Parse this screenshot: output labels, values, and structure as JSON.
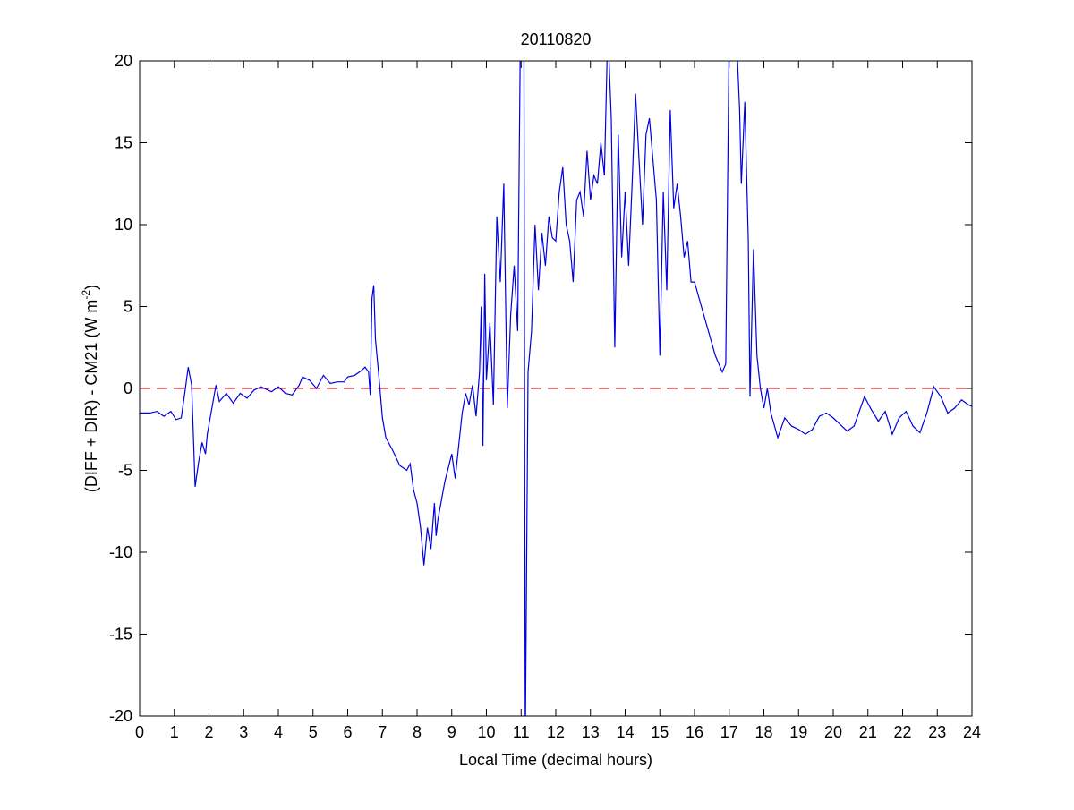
{
  "chart_data": {
    "type": "line",
    "title": "20110820",
    "xlabel": "Local Time (decimal hours)",
    "ylabel_main": "(DIFF + DIR) - CM21 (W m",
    "ylabel_sup": "-2",
    "ylabel_end": ")",
    "xlim": [
      0,
      24
    ],
    "ylim": [
      -20,
      20
    ],
    "xticks": [
      0,
      1,
      2,
      3,
      4,
      5,
      6,
      7,
      8,
      9,
      10,
      11,
      12,
      13,
      14,
      15,
      16,
      17,
      18,
      19,
      20,
      21,
      22,
      23,
      24
    ],
    "yticks": [
      -20,
      -15,
      -10,
      -5,
      0,
      5,
      10,
      15,
      20
    ],
    "grid": false,
    "reference_line": {
      "y": 0,
      "color": "#e02020",
      "style": "dashed"
    },
    "series": [
      {
        "name": "difference",
        "color": "#0000e0",
        "x": [
          0,
          0.3,
          0.5,
          0.7,
          0.9,
          1.05,
          1.2,
          1.3,
          1.4,
          1.5,
          1.6,
          1.7,
          1.8,
          1.9,
          1.95,
          2.1,
          2.2,
          2.3,
          2.5,
          2.7,
          2.9,
          3.1,
          3.3,
          3.5,
          3.8,
          4.0,
          4.2,
          4.4,
          4.6,
          4.7,
          4.9,
          5.1,
          5.3,
          5.5,
          5.7,
          5.9,
          6.0,
          6.2,
          6.4,
          6.5,
          6.6,
          6.65,
          6.7,
          6.75,
          6.8,
          6.9,
          7.0,
          7.1,
          7.3,
          7.5,
          7.7,
          7.8,
          7.9,
          8.0,
          8.1,
          8.2,
          8.3,
          8.4,
          8.5,
          8.55,
          8.6,
          8.8,
          9.0,
          9.1,
          9.2,
          9.3,
          9.4,
          9.5,
          9.6,
          9.7,
          9.8,
          9.85,
          9.9,
          9.95,
          10.0,
          10.1,
          10.2,
          10.3,
          10.4,
          10.5,
          10.6,
          10.7,
          10.8,
          10.9,
          10.98,
          11.08,
          11.12,
          11.2,
          11.3,
          11.4,
          11.5,
          11.6,
          11.7,
          11.8,
          11.9,
          12.0,
          12.1,
          12.2,
          12.3,
          12.4,
          12.5,
          12.6,
          12.7,
          12.8,
          12.9,
          13.0,
          13.1,
          13.2,
          13.3,
          13.4,
          13.5,
          13.6,
          13.7,
          13.8,
          13.9,
          14.0,
          14.1,
          14.2,
          14.3,
          14.4,
          14.5,
          14.6,
          14.7,
          14.8,
          14.9,
          15.0,
          15.1,
          15.2,
          15.3,
          15.4,
          15.5,
          15.6,
          15.7,
          15.8,
          15.9,
          16.0,
          16.2,
          16.4,
          16.6,
          16.8,
          16.9,
          17.0,
          17.1,
          17.2,
          17.3,
          17.35,
          17.45,
          17.55,
          17.6,
          17.7,
          17.8,
          17.9,
          18.0,
          18.1,
          18.2,
          18.4,
          18.6,
          18.8,
          19.0,
          19.2,
          19.4,
          19.6,
          19.8,
          20.0,
          20.2,
          20.4,
          20.6,
          20.9,
          21.1,
          21.3,
          21.5,
          21.7,
          21.9,
          22.1,
          22.3,
          22.5,
          22.7,
          22.9,
          23.1,
          23.3,
          23.5,
          23.7,
          23.9,
          24
        ],
        "y": [
          -1.5,
          -1.5,
          -1.4,
          -1.7,
          -1.4,
          -1.9,
          -1.8,
          -0.3,
          1.3,
          0.2,
          -6.0,
          -4.5,
          -3.3,
          -4.0,
          -2.8,
          -1.0,
          0.2,
          -0.8,
          -0.3,
          -0.9,
          -0.3,
          -0.6,
          -0.1,
          0.1,
          -0.2,
          0.1,
          -0.3,
          -0.4,
          0.2,
          0.7,
          0.5,
          0.0,
          0.8,
          0.3,
          0.4,
          0.4,
          0.7,
          0.8,
          1.1,
          1.3,
          1.0,
          -0.4,
          5.5,
          6.3,
          3.0,
          0.7,
          -1.8,
          -3.0,
          -3.8,
          -4.7,
          -5.0,
          -4.6,
          -6.2,
          -7.0,
          -8.5,
          -10.8,
          -8.5,
          -9.8,
          -7.0,
          -9.0,
          -8.0,
          -5.7,
          -4.0,
          -5.5,
          -3.5,
          -1.5,
          -0.3,
          -1.0,
          0.2,
          -1.7,
          1.0,
          5.0,
          -3.5,
          7.0,
          0.5,
          4.0,
          -1.0,
          10.5,
          6.5,
          12.5,
          -1.2,
          4.5,
          7.5,
          3.5,
          22,
          22,
          -22,
          1.0,
          3.5,
          10.0,
          6.0,
          9.5,
          7.5,
          10.5,
          9.2,
          9.0,
          12.0,
          13.5,
          10.0,
          9.0,
          6.5,
          11.5,
          12.0,
          10.5,
          14.5,
          11.5,
          13.0,
          12.5,
          15.0,
          13.0,
          22,
          16.5,
          2.5,
          15.5,
          8.0,
          12.0,
          7.5,
          12.5,
          18.0,
          14.0,
          10.0,
          15.5,
          16.5,
          14.0,
          11.5,
          2.0,
          12.0,
          6.0,
          17.0,
          11.0,
          12.5,
          10.5,
          8.0,
          9.0,
          6.5,
          6.5,
          5.0,
          3.5,
          2.0,
          1.0,
          1.5,
          22,
          22,
          22,
          17.0,
          12.5,
          17.5,
          9.0,
          -0.5,
          8.5,
          2.0,
          0.0,
          -1.2,
          0.0,
          -1.5,
          -3.0,
          -1.8,
          -2.3,
          -2.5,
          -2.8,
          -2.5,
          -1.7,
          -1.5,
          -1.8,
          -2.2,
          -2.6,
          -2.3,
          -0.5,
          -1.3,
          -2.0,
          -1.4,
          -2.8,
          -1.8,
          -1.4,
          -2.3,
          -2.7,
          -1.5,
          0.1,
          -0.5,
          -1.5,
          -1.2,
          -0.7,
          -1.0,
          -1.1
        ]
      }
    ]
  }
}
